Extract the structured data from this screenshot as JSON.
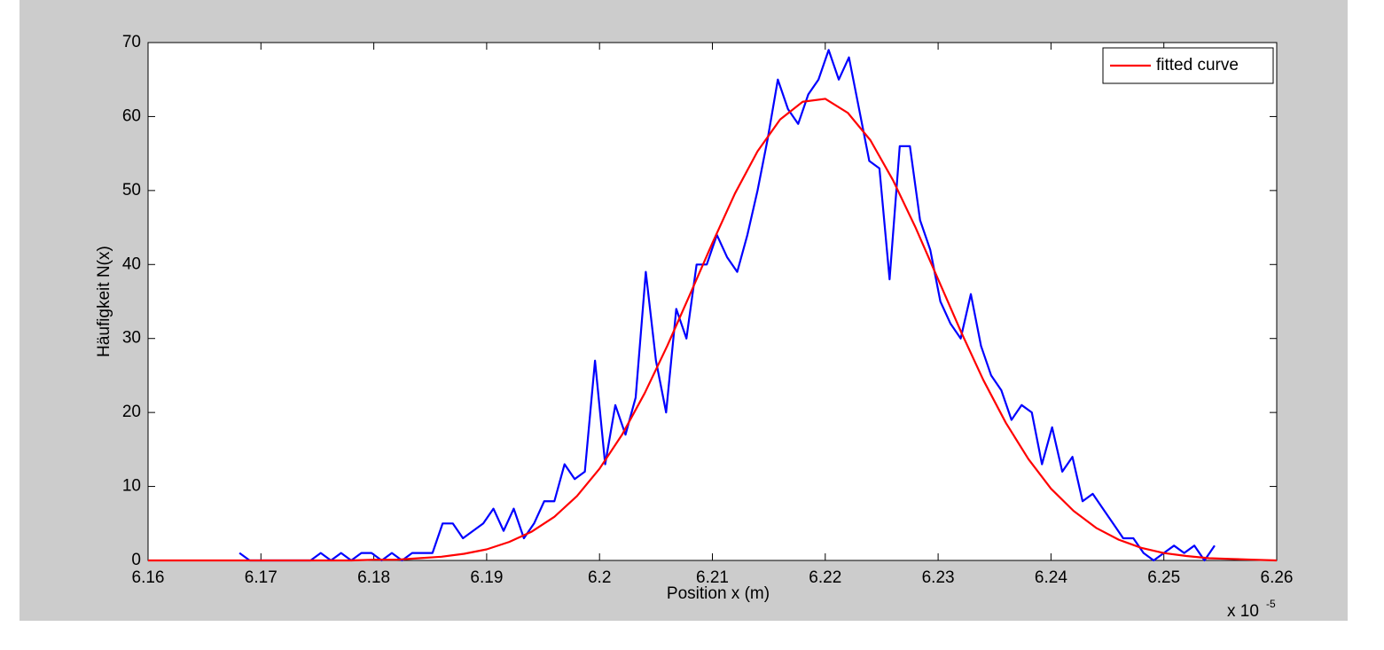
{
  "chart_data": {
    "type": "line",
    "xlabel": "Position x (m)",
    "ylabel": "Häufigkeit N(x)",
    "x_multiplier": "x 10",
    "x_multiplier_exponent": "-5",
    "xlim": [
      6.16,
      6.26
    ],
    "xticks": [
      6.16,
      6.17,
      6.18,
      6.19,
      6.2,
      6.21,
      6.22,
      6.23,
      6.24,
      6.25,
      6.26
    ],
    "ylim": [
      0,
      70
    ],
    "yticks": [
      0,
      10,
      20,
      30,
      40,
      50,
      60,
      70
    ],
    "grid": false,
    "legend": "top right",
    "series": [
      {
        "color": "#0000ff",
        "x": [
          6.1681,
          6.169,
          6.1699,
          6.1708,
          6.1717,
          6.1726,
          6.1735,
          6.1744,
          6.1753,
          6.1762,
          6.1771,
          6.178,
          6.1789,
          6.1798,
          6.1807,
          6.1816,
          6.1825,
          6.1834,
          6.1843,
          6.1852,
          6.1861,
          6.187,
          6.1879,
          6.1888,
          6.1897,
          6.1906,
          6.1915,
          6.1924,
          6.1933,
          6.1942,
          6.1951,
          6.196,
          6.1969,
          6.1978,
          6.1987,
          6.1996,
          6.2005,
          6.2014,
          6.2023,
          6.2032,
          6.2041,
          6.205,
          6.2059,
          6.2068,
          6.2077,
          6.2086,
          6.2095,
          6.2104,
          6.2113,
          6.2122,
          6.2131,
          6.214,
          6.2149,
          6.2158,
          6.2167,
          6.2176,
          6.2185,
          6.2194,
          6.2203,
          6.2212,
          6.2221,
          6.223,
          6.2239,
          6.2248,
          6.2257,
          6.2266,
          6.2275,
          6.2284,
          6.2293,
          6.2302,
          6.2311,
          6.232,
          6.2329,
          6.2338,
          6.2347,
          6.2356,
          6.2365,
          6.2374,
          6.2383,
          6.2392,
          6.2401,
          6.241,
          6.2419,
          6.2428,
          6.2437,
          6.2446,
          6.2455,
          6.2464,
          6.2473,
          6.2482,
          6.2491,
          6.25,
          6.2509,
          6.2518,
          6.2527,
          6.2536,
          6.2545
        ],
        "values": [
          1,
          0,
          0,
          0,
          0,
          0,
          0,
          0,
          1,
          0,
          1,
          0,
          1,
          1,
          0,
          1,
          0,
          1,
          1,
          1,
          5,
          5,
          3,
          4,
          5,
          7,
          4,
          7,
          3,
          5,
          8,
          8,
          13,
          11,
          12,
          27,
          13,
          21,
          17,
          22,
          39,
          27,
          20,
          34,
          30,
          40,
          40,
          44,
          41,
          39,
          44,
          50,
          57,
          65,
          61,
          59,
          63,
          65,
          69,
          65,
          68,
          61,
          54,
          53,
          38,
          56,
          56,
          46,
          42,
          35,
          32,
          30,
          36,
          29,
          25,
          23,
          19,
          21,
          20,
          13,
          18,
          12,
          14,
          8,
          9,
          7,
          5,
          3,
          3,
          1,
          0,
          1,
          2,
          1,
          2,
          0,
          2
        ]
      },
      {
        "name": "fitted curve",
        "color": "#ff0000",
        "x": [
          6.16,
          6.162,
          6.164,
          6.166,
          6.168,
          6.17,
          6.172,
          6.174,
          6.176,
          6.178,
          6.18,
          6.182,
          6.184,
          6.186,
          6.188,
          6.19,
          6.192,
          6.194,
          6.196,
          6.198,
          6.2,
          6.202,
          6.204,
          6.206,
          6.208,
          6.21,
          6.212,
          6.214,
          6.216,
          6.218,
          6.22,
          6.222,
          6.224,
          6.226,
          6.228,
          6.23,
          6.232,
          6.234,
          6.236,
          6.238,
          6.24,
          6.242,
          6.244,
          6.246,
          6.248,
          6.25,
          6.252,
          6.254,
          6.256,
          6.258,
          6.26
        ],
        "values": [
          0,
          0,
          0,
          0,
          0,
          0,
          0,
          0,
          0,
          0,
          0.1,
          0.1,
          0.3,
          0.5,
          0.9,
          1.5,
          2.5,
          3.9,
          5.9,
          8.7,
          12.4,
          17.0,
          22.6,
          29.0,
          35.9,
          42.9,
          49.6,
          55.3,
          59.6,
          62.0,
          62.4,
          60.5,
          56.8,
          51.4,
          45.0,
          38.0,
          31.0,
          24.4,
          18.6,
          13.7,
          9.7,
          6.7,
          4.4,
          2.8,
          1.7,
          1.0,
          0.6,
          0.3,
          0.2,
          0.1,
          0
        ]
      }
    ]
  }
}
